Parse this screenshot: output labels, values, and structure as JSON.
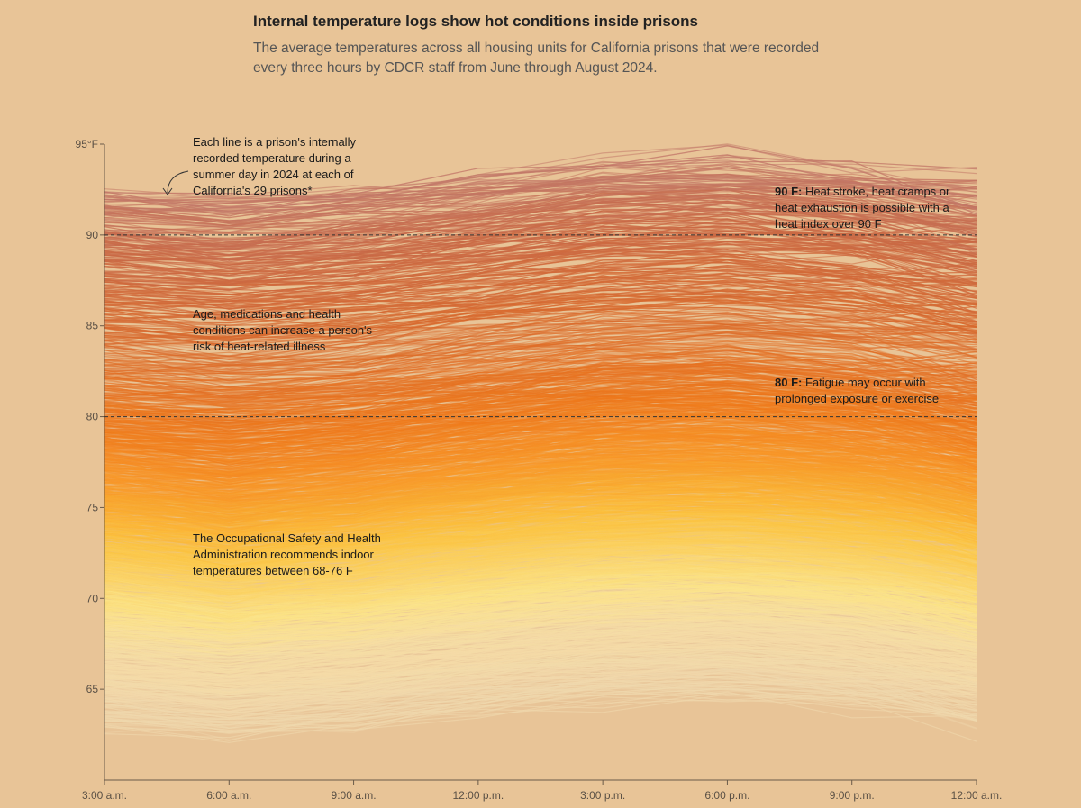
{
  "title": "Internal temperature logs show hot conditions inside prisons",
  "subtitle": "The average temperatures across all housing units for California prisons that were recorded every three hours by CDCR staff from June through August 2024.",
  "annotations": {
    "each_line": [
      "Each line is a prison's internally",
      "recorded temperature during a",
      "summer day in 2024 at each of",
      "California's 29 prisons*"
    ],
    "age": [
      "Age, medications and health",
      "conditions can increase a person's",
      "risk of heat-related illness"
    ],
    "osha": [
      "The Occupational Safety and Health",
      "Administration recommends indoor",
      "temperatures between 68-76 F"
    ],
    "t90_bold": "90 F:",
    "t90_rest": " Heat stroke, heat cramps or",
    "t90_lines": [
      "heat exhaustion is possible with a",
      "heat index over 90 F"
    ],
    "t80_bold": "80 F:",
    "t80_rest": " Fatigue may occur with",
    "t80_lines": [
      "prolonged exposure or exercise"
    ]
  },
  "chart_data": {
    "type": "line",
    "x": [
      "3:00 a.m.",
      "6:00 a.m.",
      "9:00 a.m.",
      "12:00 p.m.",
      "3:00 p.m.",
      "6:00 p.m.",
      "9:00 p.m.",
      "12:00 a.m."
    ],
    "y_ticks": [
      "95°F",
      "90",
      "85",
      "80",
      "75",
      "70",
      "65"
    ],
    "y_tick_values": [
      95,
      90,
      85,
      80,
      75,
      70,
      65
    ],
    "ylim": [
      60,
      95
    ],
    "reference_lines": [
      90,
      80
    ],
    "line_count": 2600,
    "series_profile": {
      "min_start": 63.0,
      "max_start": 92.2,
      "diurnal_bump": [
        0,
        -0.4,
        0.1,
        0.9,
        1.6,
        1.8,
        1.3,
        0.4
      ]
    },
    "color_scale": [
      {
        "t": 64,
        "color": "#f1d9b0"
      },
      {
        "t": 68,
        "color": "#f7dfa6"
      },
      {
        "t": 70,
        "color": "#fde48a"
      },
      {
        "t": 74,
        "color": "#fcc23e"
      },
      {
        "t": 77,
        "color": "#f99a2a"
      },
      {
        "t": 80,
        "color": "#f07a1c"
      },
      {
        "t": 85,
        "color": "#d9692c"
      },
      {
        "t": 90,
        "color": "#c96a48"
      },
      {
        "t": 93,
        "color": "#c27a6a"
      }
    ],
    "grid": false
  }
}
